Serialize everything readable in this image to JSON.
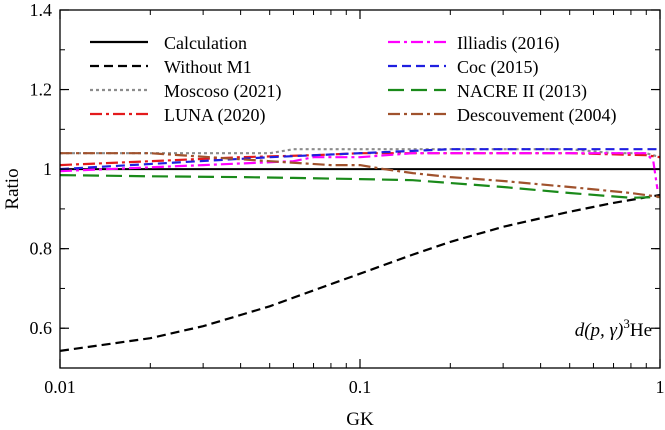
{
  "chart_data": {
    "type": "line",
    "xlabel": "GK",
    "ylabel": "Ratio",
    "xscale": "log",
    "xlim": [
      0.01,
      1
    ],
    "ylim": [
      0.5,
      1.4
    ],
    "xticks": [
      {
        "v": 0.01,
        "label": "0.01"
      },
      {
        "v": 0.1,
        "label": "0.1"
      },
      {
        "v": 1,
        "label": "1"
      }
    ],
    "yticks": [
      {
        "v": 0.6,
        "label": "0.6"
      },
      {
        "v": 0.8,
        "label": "0.8"
      },
      {
        "v": 1.0,
        "label": "1"
      },
      {
        "v": 1.2,
        "label": "1.2"
      },
      {
        "v": 1.4,
        "label": "1.4"
      }
    ],
    "annotation": {
      "reaction": "d(p, γ)",
      "superscript": "3",
      "nucleus": "He"
    },
    "legend_placement": "top",
    "series": [
      {
        "name": "Calculation",
        "color": "#000000",
        "dash": "solid",
        "x": [
          0.01,
          1
        ],
        "y": [
          1.0,
          1.0
        ]
      },
      {
        "name": "Without M1",
        "color": "#000000",
        "dash": "dashed",
        "x": [
          0.01,
          0.02,
          0.03,
          0.05,
          0.07,
          0.1,
          0.15,
          0.2,
          0.3,
          0.5,
          0.7,
          1.0
        ],
        "y": [
          0.543,
          0.575,
          0.605,
          0.655,
          0.695,
          0.737,
          0.785,
          0.817,
          0.855,
          0.893,
          0.915,
          0.935
        ]
      },
      {
        "name": "Moscoso (2021)",
        "color": "#8c8c8c",
        "dash": "dotted",
        "x": [
          0.01,
          0.03,
          0.05,
          0.06,
          0.1,
          0.3,
          0.5,
          0.7,
          0.9,
          1.0
        ],
        "y": [
          1.04,
          1.04,
          1.04,
          1.05,
          1.05,
          1.05,
          1.05,
          1.04,
          1.04,
          1.03
        ]
      },
      {
        "name": "LUNA (2020)",
        "color": "#e31a1c",
        "dash": "dashdot",
        "x": [
          0.01,
          0.02,
          0.04,
          0.07,
          0.1,
          0.2,
          0.5,
          0.9,
          1.0
        ],
        "y": [
          1.01,
          1.02,
          1.03,
          1.035,
          1.04,
          1.04,
          1.04,
          1.035,
          1.03
        ]
      },
      {
        "name": "Illiadis (2016)",
        "color": "#ff00ff",
        "dash": "dashdot",
        "x": [
          0.01,
          0.03,
          0.06,
          0.07,
          0.1,
          0.15,
          0.2,
          0.3,
          0.5,
          0.9,
          0.95,
          0.98
        ],
        "y": [
          0.995,
          1.01,
          1.02,
          1.03,
          1.03,
          1.04,
          1.04,
          1.04,
          1.04,
          1.04,
          1.02,
          0.95
        ]
      },
      {
        "name": "Coc (2015)",
        "color": "#1f1fe0",
        "dash": "dashed",
        "x": [
          0.01,
          0.05,
          0.1,
          0.2,
          0.5,
          0.9,
          1.0
        ],
        "y": [
          1.0,
          1.03,
          1.04,
          1.05,
          1.05,
          1.05,
          1.05
        ]
      },
      {
        "name": "NACRE II (2013)",
        "color": "#1a8a1a",
        "dash": "longdash",
        "x": [
          0.01,
          0.02,
          0.04,
          0.06,
          0.1,
          0.15,
          0.2,
          0.3,
          0.5,
          0.8,
          1.0
        ],
        "y": [
          0.985,
          0.982,
          0.98,
          0.978,
          0.975,
          0.972,
          0.965,
          0.955,
          0.94,
          0.928,
          0.93
        ]
      },
      {
        "name": "Descouvement (2004)",
        "color": "#a0522d",
        "dash": "dashdot",
        "x": [
          0.01,
          0.02,
          0.05,
          0.08,
          0.1,
          0.12,
          0.15,
          0.2,
          0.3,
          0.5,
          0.8,
          1.0
        ],
        "y": [
          1.04,
          1.04,
          1.02,
          1.01,
          1.01,
          1.0,
          0.99,
          0.98,
          0.97,
          0.955,
          0.94,
          0.93
        ]
      }
    ]
  }
}
